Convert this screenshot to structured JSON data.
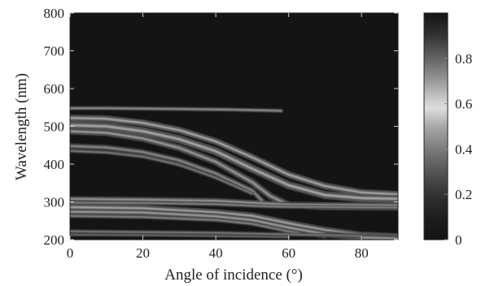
{
  "chart_data": {
    "type": "heatmap",
    "colormap": "grayscale-dark-to-bright",
    "background_value": 0,
    "xlabel": "Angle of incidence (°)",
    "ylabel": "Wavelength (nm)",
    "xlim": [
      0,
      90
    ],
    "ylim": [
      200,
      800
    ],
    "xticks": [
      "0",
      "20",
      "40",
      "60",
      "80"
    ],
    "xtick_values": [
      0,
      20,
      40,
      60,
      80
    ],
    "yticks": [
      "200",
      "300",
      "400",
      "500",
      "600",
      "700",
      "800"
    ],
    "ytick_values": [
      200,
      300,
      400,
      500,
      600,
      700,
      800
    ],
    "colorbar": {
      "range": [
        0,
        1
      ],
      "ticks": [
        "0",
        "0.2",
        "0.4",
        "0.6",
        "0.8"
      ],
      "tick_values": [
        0,
        0.2,
        0.4,
        0.6,
        0.8
      ],
      "colors": [
        [
          0,
          "#141414"
        ],
        [
          0.1,
          "#1e1e1e"
        ],
        [
          0.2,
          "#333333"
        ],
        [
          0.3,
          "#555555"
        ],
        [
          0.4,
          "#7c7c7c"
        ],
        [
          0.5,
          "#a8a8a8"
        ],
        [
          0.58,
          "#dedede"
        ],
        [
          0.63,
          "#c4c4c4"
        ],
        [
          0.72,
          "#8e8e8e"
        ],
        [
          0.82,
          "#5a5a5a"
        ],
        [
          0.9,
          "#333333"
        ],
        [
          1.0,
          "#141414"
        ]
      ]
    },
    "bands": [
      {
        "name": "top-thin",
        "intensity": 0.55,
        "width": 1.5,
        "points": [
          [
            0,
            548
          ],
          [
            10,
            548
          ],
          [
            30,
            546
          ],
          [
            45,
            544
          ],
          [
            55,
            542
          ],
          [
            58,
            541
          ]
        ]
      },
      {
        "name": "upper-1",
        "intensity": 0.6,
        "width": 2.5,
        "points": [
          [
            0,
            522
          ],
          [
            10,
            520
          ],
          [
            20,
            509
          ],
          [
            30,
            490
          ],
          [
            40,
            460
          ],
          [
            50,
            418
          ],
          [
            60,
            372
          ],
          [
            70,
            342
          ],
          [
            80,
            325
          ],
          [
            90,
            320
          ]
        ]
      },
      {
        "name": "upper-2",
        "intensity": 0.6,
        "width": 3.0,
        "points": [
          [
            0,
            503
          ],
          [
            10,
            500
          ],
          [
            20,
            487
          ],
          [
            30,
            466
          ],
          [
            40,
            434
          ],
          [
            50,
            388
          ],
          [
            60,
            344
          ],
          [
            70,
            318
          ],
          [
            80,
            310
          ],
          [
            90,
            308
          ]
        ]
      },
      {
        "name": "upper-3",
        "intensity": 0.55,
        "width": 2.5,
        "points": [
          [
            0,
            487
          ],
          [
            10,
            483
          ],
          [
            20,
            468
          ],
          [
            30,
            443
          ],
          [
            40,
            406
          ],
          [
            50,
            352
          ],
          [
            55,
            315
          ],
          [
            60,
            292
          ],
          [
            70,
            287
          ],
          [
            90,
            286
          ]
        ]
      },
      {
        "name": "upper-4",
        "intensity": 0.5,
        "width": 2.0,
        "points": [
          [
            0,
            448
          ],
          [
            10,
            444
          ],
          [
            20,
            432
          ],
          [
            30,
            410
          ],
          [
            40,
            375
          ],
          [
            50,
            330
          ],
          [
            53,
            300
          ]
        ]
      },
      {
        "name": "upper-5",
        "intensity": 0.45,
        "width": 1.5,
        "points": [
          [
            0,
            435
          ],
          [
            10,
            431
          ],
          [
            20,
            420
          ],
          [
            30,
            398
          ],
          [
            40,
            364
          ],
          [
            50,
            322
          ]
        ]
      },
      {
        "name": "mid-1",
        "intensity": 0.55,
        "width": 2.0,
        "points": [
          [
            0,
            308
          ],
          [
            20,
            306
          ],
          [
            40,
            303
          ],
          [
            55,
            295
          ],
          [
            60,
            293
          ],
          [
            75,
            292
          ],
          [
            90,
            291
          ]
        ]
      },
      {
        "name": "mid-2",
        "intensity": 0.5,
        "width": 1.5,
        "points": [
          [
            0,
            298
          ],
          [
            20,
            297
          ],
          [
            40,
            294
          ],
          [
            55,
            288
          ],
          [
            60,
            287
          ],
          [
            75,
            286
          ],
          [
            90,
            285
          ]
        ]
      },
      {
        "name": "lower-1",
        "intensity": 0.6,
        "width": 2.5,
        "points": [
          [
            0,
            286
          ],
          [
            20,
            283
          ],
          [
            40,
            272
          ],
          [
            50,
            263
          ],
          [
            60,
            243
          ],
          [
            70,
            225
          ],
          [
            80,
            212
          ],
          [
            90,
            208
          ]
        ]
      },
      {
        "name": "lower-2",
        "intensity": 0.55,
        "width": 2.5,
        "points": [
          [
            0,
            274
          ],
          [
            20,
            272
          ],
          [
            40,
            262
          ],
          [
            50,
            252
          ],
          [
            60,
            232
          ],
          [
            70,
            215
          ],
          [
            80,
            206
          ],
          [
            90,
            203
          ]
        ]
      },
      {
        "name": "lower-3",
        "intensity": 0.5,
        "width": 1.5,
        "points": [
          [
            0,
            263
          ],
          [
            20,
            260
          ],
          [
            40,
            252
          ],
          [
            50,
            242
          ],
          [
            60,
            222
          ],
          [
            70,
            208
          ]
        ]
      },
      {
        "name": "bottom-1",
        "intensity": 0.45,
        "width": 1.5,
        "points": [
          [
            0,
            222
          ],
          [
            20,
            220
          ],
          [
            40,
            218
          ],
          [
            60,
            214
          ],
          [
            80,
            210
          ]
        ]
      },
      {
        "name": "bottom-2",
        "intensity": 0.4,
        "width": 1.2,
        "points": [
          [
            0,
            213
          ],
          [
            20,
            212
          ],
          [
            40,
            210
          ],
          [
            60,
            207
          ]
        ]
      }
    ]
  }
}
